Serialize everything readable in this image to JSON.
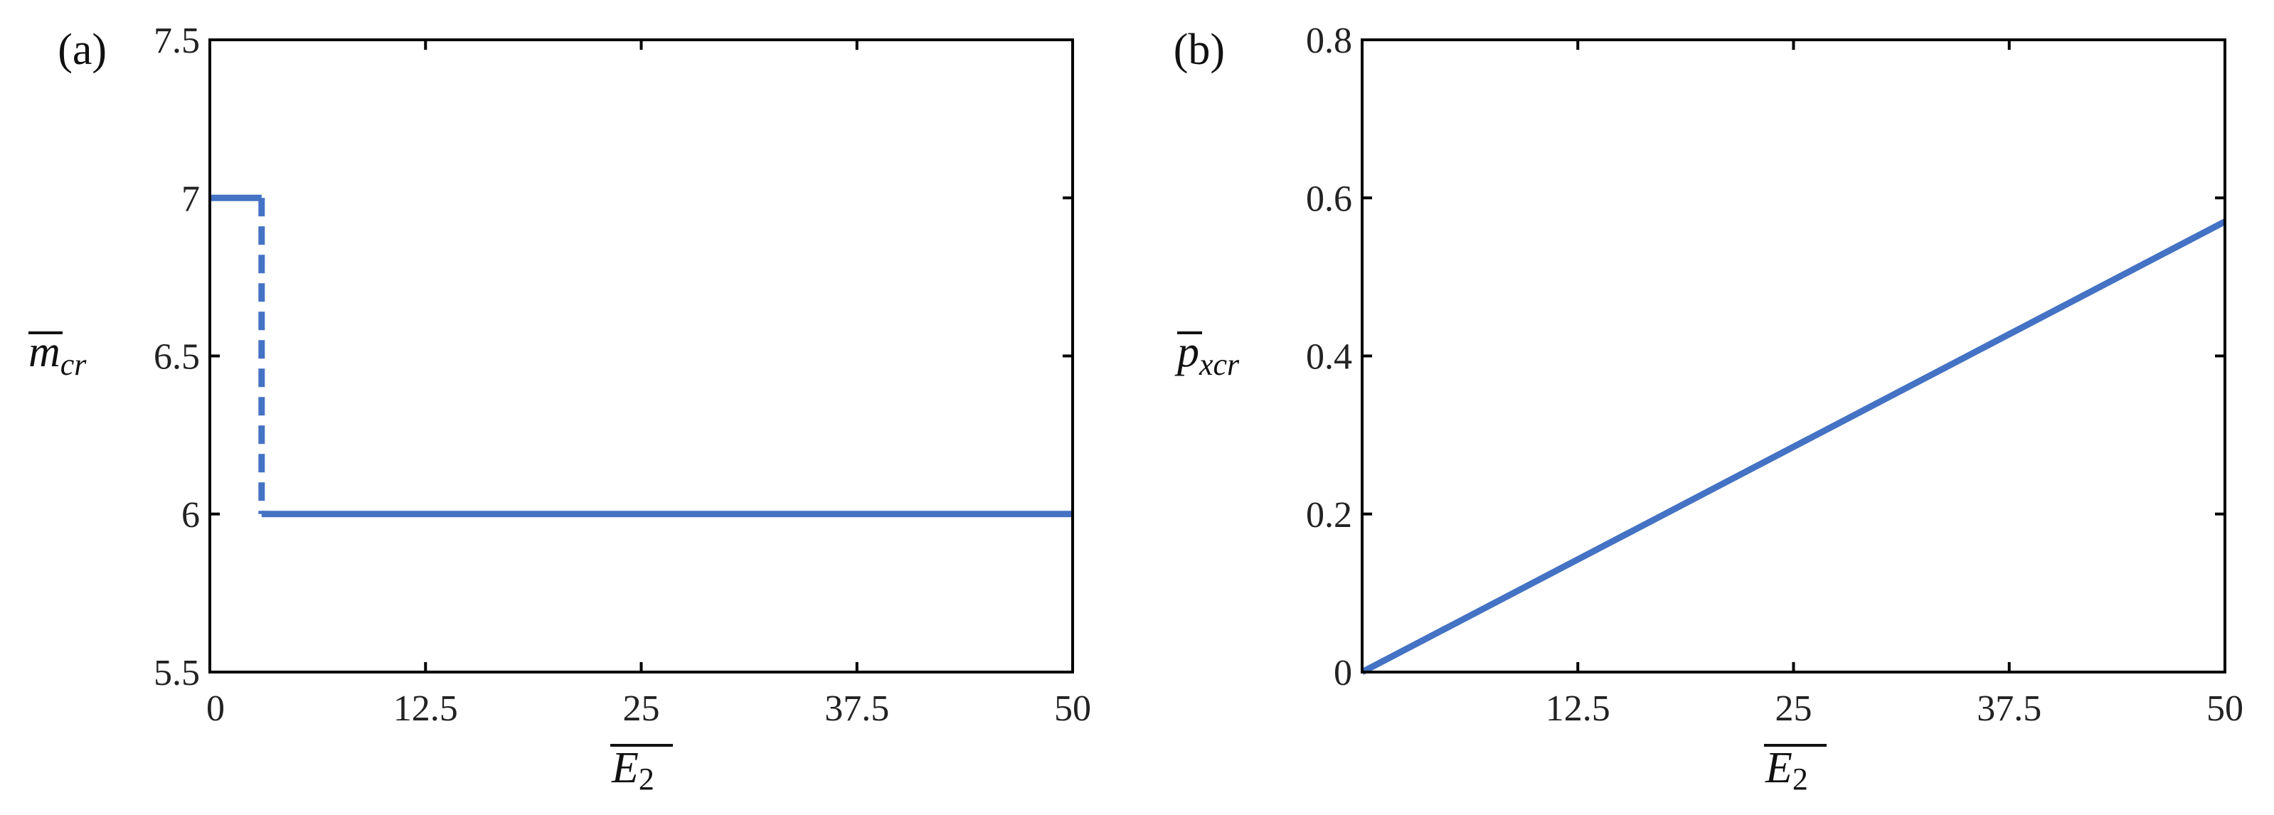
{
  "colors": {
    "series": "#4472C4",
    "axis": "#000000",
    "text": "#222222"
  },
  "chart_data": [
    {
      "type": "line",
      "panel_label": "(a)",
      "ylabel": {
        "base": "m",
        "sub": "cr"
      },
      "xlabel": {
        "base": "E",
        "sub": "2"
      },
      "xlim": [
        0,
        50
      ],
      "ylim": [
        5.5,
        7.5
      ],
      "xticks": [
        0,
        12.5,
        25,
        37.5,
        50
      ],
      "xtick_labels": [
        "0",
        "12.5",
        "25",
        "37.5",
        "50"
      ],
      "yticks": [
        5.5,
        6,
        6.5,
        7,
        7.5
      ],
      "ytick_labels": [
        "5.5",
        "6",
        "6.5",
        "7",
        "7.5"
      ],
      "grid": false,
      "series": [
        {
          "style": "solid",
          "x": [
            0,
            3
          ],
          "y": [
            7,
            7
          ]
        },
        {
          "style": "dashed",
          "x": [
            3,
            3
          ],
          "y": [
            7,
            6
          ]
        },
        {
          "style": "solid",
          "x": [
            3,
            50
          ],
          "y": [
            6,
            6
          ]
        }
      ]
    },
    {
      "type": "line",
      "panel_label": "(b)",
      "ylabel": {
        "base": "p",
        "sub": "xcr"
      },
      "xlabel": {
        "base": "E",
        "sub": "2"
      },
      "xlim": [
        0,
        50
      ],
      "ylim": [
        0,
        0.8
      ],
      "xticks": [
        12.5,
        25,
        37.5,
        50
      ],
      "xtick_labels": [
        "12.5",
        "25",
        "37.5",
        "50"
      ],
      "yticks": [
        0,
        0.2,
        0.4,
        0.6,
        0.8
      ],
      "ytick_labels": [
        "0",
        "0.2",
        "0.4",
        "0.6",
        "0.8"
      ],
      "grid": false,
      "series": [
        {
          "style": "solid",
          "x": [
            0,
            50
          ],
          "y": [
            0,
            0.57
          ]
        }
      ]
    }
  ]
}
